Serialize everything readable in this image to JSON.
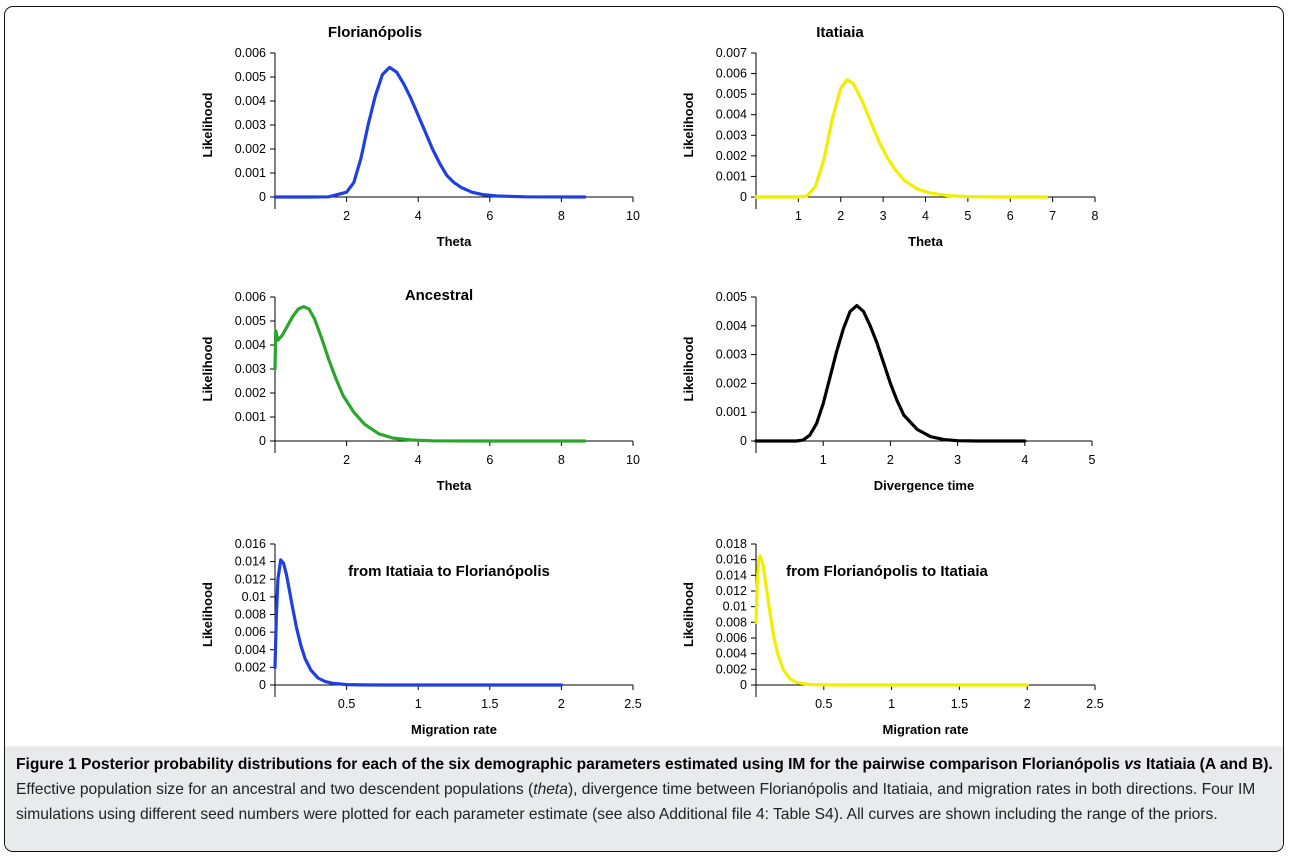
{
  "chart_data": [
    {
      "type": "line",
      "title": "Florianópolis",
      "xlabel": "Theta",
      "ylabel": "Likelihood",
      "color": "#1f3fe0",
      "xlim": [
        0,
        10
      ],
      "ylim": [
        0,
        0.006
      ],
      "xticks": [
        "2",
        "4",
        "6",
        "8",
        "10"
      ],
      "yticks": [
        "0",
        "0.001",
        "0.002",
        "0.003",
        "0.004",
        "0.005",
        "0.006"
      ],
      "x": [
        0,
        1.0,
        1.5,
        2.0,
        2.2,
        2.4,
        2.6,
        2.8,
        3.0,
        3.2,
        3.4,
        3.6,
        3.8,
        4.0,
        4.2,
        4.4,
        4.6,
        4.8,
        5.0,
        5.2,
        5.5,
        5.8,
        6.2,
        7.0,
        8.65
      ],
      "y": [
        0,
        0,
        1e-05,
        0.0002,
        0.0006,
        0.0016,
        0.003,
        0.0042,
        0.0051,
        0.0054,
        0.0052,
        0.0047,
        0.0041,
        0.0034,
        0.0027,
        0.002,
        0.0014,
        0.0009,
        0.0006,
        0.0004,
        0.0002,
        0.0001,
        4e-05,
        1e-05,
        0
      ]
    },
    {
      "type": "line",
      "title": "Itatiaia",
      "xlabel": "Theta",
      "ylabel": "Likelihood",
      "color": "#f2ee00",
      "xlim": [
        0,
        8
      ],
      "ylim": [
        0,
        0.007
      ],
      "xticks": [
        "1",
        "2",
        "3",
        "4",
        "5",
        "6",
        "7",
        "8"
      ],
      "yticks": [
        "0",
        "0.001",
        "0.002",
        "0.003",
        "0.004",
        "0.005",
        "0.006",
        "0.007"
      ],
      "x": [
        0,
        1.0,
        1.2,
        1.4,
        1.6,
        1.8,
        2.0,
        2.15,
        2.3,
        2.5,
        2.7,
        2.9,
        3.1,
        3.3,
        3.5,
        3.8,
        4.1,
        4.5,
        5.0,
        6.0,
        6.85
      ],
      "y": [
        0,
        0,
        5e-05,
        0.0005,
        0.0018,
        0.0038,
        0.0053,
        0.0057,
        0.0055,
        0.0047,
        0.0037,
        0.0027,
        0.0019,
        0.0013,
        0.0008,
        0.0004,
        0.0002,
        7e-05,
        2e-05,
        0,
        0
      ]
    },
    {
      "type": "line",
      "title": "Ancestral",
      "xlabel": "Theta",
      "ylabel": "Likelihood",
      "color": "#2ca52c",
      "xlim": [
        0,
        10
      ],
      "ylim": [
        0,
        0.006
      ],
      "xticks": [
        "2",
        "4",
        "6",
        "8",
        "10"
      ],
      "yticks": [
        "0",
        "0.001",
        "0.002",
        "0.003",
        "0.004",
        "0.005",
        "0.006"
      ],
      "x": [
        0,
        0.02,
        0.08,
        0.2,
        0.35,
        0.5,
        0.65,
        0.8,
        0.95,
        1.1,
        1.3,
        1.5,
        1.7,
        1.9,
        2.2,
        2.5,
        2.9,
        3.3,
        3.8,
        4.4,
        5.5,
        7.0,
        8.65
      ],
      "y": [
        0.003,
        0.0046,
        0.0042,
        0.0044,
        0.0048,
        0.0052,
        0.0055,
        0.0056,
        0.0055,
        0.0051,
        0.0043,
        0.0034,
        0.0026,
        0.0019,
        0.0012,
        0.0007,
        0.0003,
        0.00012,
        4e-05,
        1e-05,
        0,
        0,
        0
      ]
    },
    {
      "type": "line",
      "title": "",
      "xlabel": "Divergence time",
      "ylabel": "Likelihood",
      "color": "#000000",
      "xlim": [
        0,
        5
      ],
      "ylim": [
        0,
        0.005
      ],
      "xticks": [
        "1",
        "2",
        "3",
        "4",
        "5"
      ],
      "yticks": [
        "0",
        "0.001",
        "0.002",
        "0.003",
        "0.004",
        "0.005"
      ],
      "x": [
        0,
        0.6,
        0.7,
        0.8,
        0.9,
        1.0,
        1.1,
        1.2,
        1.3,
        1.4,
        1.5,
        1.6,
        1.7,
        1.8,
        1.9,
        2.0,
        2.1,
        2.2,
        2.4,
        2.6,
        2.8,
        3.0,
        3.3,
        4.0
      ],
      "y": [
        0,
        0,
        3e-05,
        0.0002,
        0.0006,
        0.0013,
        0.0022,
        0.0031,
        0.0039,
        0.0045,
        0.0047,
        0.0045,
        0.004,
        0.0034,
        0.0027,
        0.002,
        0.0014,
        0.0009,
        0.0004,
        0.00015,
        5e-05,
        1e-05,
        0,
        0
      ]
    },
    {
      "type": "line",
      "title": "from Itatiaia to Florianópolis",
      "xlabel": "Migration rate",
      "ylabel": "Likelihood",
      "color": "#1f3fe0",
      "xlim": [
        0,
        2.5
      ],
      "ylim": [
        0,
        0.016
      ],
      "xticks": [
        "0.5",
        "1",
        "1.5",
        "2",
        "2.5"
      ],
      "yticks": [
        "0",
        "0.002",
        "0.004",
        "0.006",
        "0.008",
        "0.01",
        "0.012",
        "0.014",
        "0.016"
      ],
      "x": [
        0,
        0.01,
        0.02,
        0.04,
        0.06,
        0.08,
        0.1,
        0.12,
        0.15,
        0.18,
        0.21,
        0.25,
        0.3,
        0.35,
        0.4,
        0.5,
        0.6,
        0.8,
        1.0,
        2.0
      ],
      "y": [
        0.002,
        0.008,
        0.012,
        0.0142,
        0.0138,
        0.0125,
        0.0108,
        0.009,
        0.0065,
        0.0045,
        0.003,
        0.0017,
        0.0008,
        0.0004,
        0.0002,
        5e-05,
        1e-05,
        0,
        0,
        0
      ]
    },
    {
      "type": "line",
      "title": "from Florianópolis to Itatiaia",
      "xlabel": "Migration rate",
      "ylabel": "Likelihood",
      "color": "#f2ee00",
      "xlim": [
        0,
        2.5
      ],
      "ylim": [
        0,
        0.018
      ],
      "xticks": [
        "0.5",
        "1",
        "1.5",
        "2",
        "2.5"
      ],
      "yticks": [
        "0",
        "0.002",
        "0.004",
        "0.006",
        "0.008",
        "0.01",
        "0.012",
        "0.014",
        "0.016",
        "0.018"
      ],
      "x": [
        0,
        0.01,
        0.02,
        0.03,
        0.05,
        0.07,
        0.09,
        0.11,
        0.13,
        0.16,
        0.2,
        0.25,
        0.3,
        0.4,
        0.5,
        0.7,
        1.0,
        2.0
      ],
      "y": [
        0.008,
        0.0135,
        0.016,
        0.0165,
        0.0155,
        0.0132,
        0.0108,
        0.0085,
        0.0063,
        0.004,
        0.002,
        0.0008,
        0.0003,
        5e-05,
        1e-05,
        0,
        0,
        0
      ]
    }
  ],
  "caption": {
    "label": "Figure 1",
    "bold_text_1": "Posterior probability distributions for each of the six demographic parameters estimated using IM for the pairwise comparison Florianópolis ",
    "bold_italic": "vs",
    "bold_text_2": " Itatiaia (A and B).",
    "text_1": " Effective population size for an ancestral and two descendent populations (",
    "italic": "theta",
    "text_2": "), divergence time between Florianópolis and Itatiaia, and migration rates in both directions. Four IM simulations using different seed numbers were plotted for each parameter estimate (see also Additional file 4: Table S4). All curves are shown including the range of the priors."
  }
}
